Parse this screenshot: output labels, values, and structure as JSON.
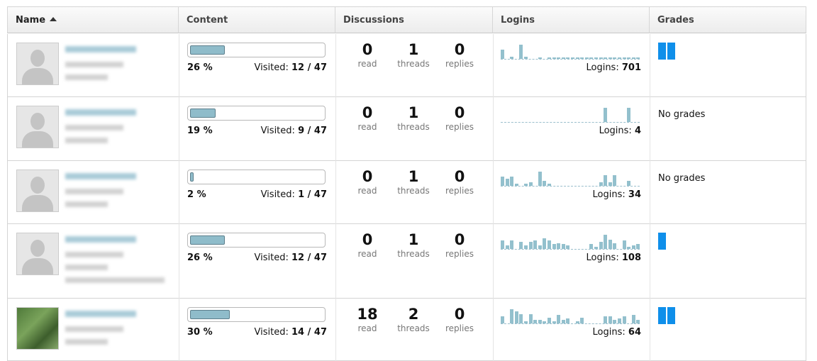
{
  "header": {
    "name": "Name",
    "content": "Content",
    "discussions": "Discussions",
    "logins": "Logins",
    "grades": "Grades"
  },
  "rows": [
    {
      "progress": {
        "value": 26,
        "label": "26 %"
      },
      "visited_label": "Visited:",
      "visited": "12 / 47",
      "read": 0,
      "read_label": "read",
      "threads": 1,
      "threads_label": "threads",
      "replies": 0,
      "replies_label": "replies",
      "logins_label": "Logins:",
      "logins": 701,
      "logins_history": [
        8,
        0,
        2,
        0,
        12,
        2,
        0,
        0,
        1,
        0,
        1,
        1,
        1,
        1,
        1,
        1,
        1,
        1,
        1,
        1,
        1,
        1,
        1,
        1,
        1,
        1,
        1,
        1,
        1,
        1
      ],
      "grades": {
        "blocks": 2
      }
    },
    {
      "progress": {
        "value": 19,
        "label": "19 %"
      },
      "visited_label": "Visited:",
      "visited": "9 / 47",
      "read": 0,
      "read_label": "read",
      "threads": 1,
      "threads_label": "threads",
      "replies": 0,
      "replies_label": "replies",
      "logins_label": "Logins:",
      "logins": 4,
      "logins_history": [
        0,
        0,
        0,
        0,
        0,
        0,
        0,
        0,
        0,
        0,
        0,
        0,
        0,
        0,
        0,
        0,
        0,
        0,
        0,
        0,
        0,
        0,
        12,
        0,
        0,
        0,
        0,
        12,
        0,
        0
      ],
      "grades": "No grades"
    },
    {
      "progress": {
        "value": 2,
        "label": "2 %"
      },
      "visited_label": "Visited:",
      "visited": "1 / 47",
      "read": 0,
      "read_label": "read",
      "threads": 1,
      "threads_label": "threads",
      "replies": 0,
      "replies_label": "replies",
      "logins_label": "Logins:",
      "logins": 34,
      "logins_history": [
        8,
        6,
        8,
        2,
        0,
        2,
        3,
        0,
        12,
        4,
        2,
        0,
        0,
        0,
        0,
        0,
        0,
        0,
        0,
        0,
        0,
        3,
        9,
        3,
        9,
        0,
        0,
        4,
        0,
        0
      ],
      "grades": "No grades"
    },
    {
      "progress": {
        "value": 26,
        "label": "26 %"
      },
      "visited_label": "Visited:",
      "visited": "12 / 47",
      "read": 0,
      "read_label": "read",
      "threads": 1,
      "threads_label": "threads",
      "replies": 0,
      "replies_label": "replies",
      "logins_label": "Logins:",
      "logins": 108,
      "logins_history": [
        7,
        3,
        7,
        0,
        6,
        3,
        6,
        7,
        3,
        9,
        7,
        4,
        5,
        4,
        3,
        0,
        0,
        0,
        0,
        4,
        2,
        6,
        12,
        8,
        5,
        0,
        7,
        2,
        3,
        4
      ],
      "grades": {
        "blocks": 1
      }
    },
    {
      "progress": {
        "value": 30,
        "label": "30 %"
      },
      "visited_label": "Visited:",
      "visited": "14 / 47",
      "read": 18,
      "read_label": "read",
      "threads": 2,
      "threads_label": "threads",
      "replies": 0,
      "replies_label": "replies",
      "logins_label": "Logins:",
      "logins": 64,
      "logins_history": [
        6,
        0,
        12,
        10,
        8,
        2,
        8,
        3,
        3,
        2,
        5,
        2,
        7,
        3,
        4,
        0,
        2,
        5,
        0,
        0,
        0,
        0,
        6,
        6,
        3,
        4,
        6,
        0,
        7,
        3
      ],
      "grades": {
        "blocks": 2
      }
    }
  ]
}
